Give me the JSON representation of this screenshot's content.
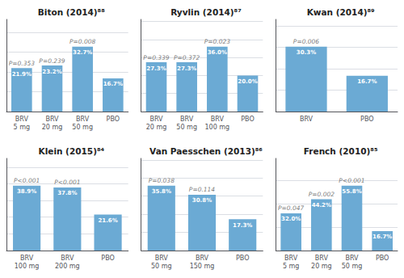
{
  "chart_data": [
    {
      "type": "bar",
      "title": "Biton (2014)⁸⁸",
      "categories": [
        "BRV\n5 mg",
        "BRV\n20 mg",
        "BRV\n50 mg",
        "PBO"
      ],
      "values": [
        21.9,
        23.2,
        32.7,
        16.7
      ],
      "value_labels": [
        "21.9%",
        "23.2%",
        "32.7%",
        "16.7%"
      ],
      "data_labels": true,
      "annotations": [
        "P=0.353",
        "P=0.239",
        "P=0.008",
        null
      ],
      "color": "#6baad4",
      "ylim": [
        0,
        46.434
      ],
      "yticks": [
        0,
        10,
        20,
        30,
        40
      ],
      "grid": true,
      "tick_labels": "x"
    },
    {
      "type": "bar",
      "title": "Ryvlin (2014)⁸⁷",
      "categories": [
        "BRV\n20 mg",
        "BRV\n50 mg",
        "BRV\n100 mg",
        "PBO"
      ],
      "values": [
        27.3,
        27.3,
        36.0,
        20.0
      ],
      "value_labels": [
        "27.3%",
        "27.3%",
        "36.0%",
        "20.0%"
      ],
      "data_labels": true,
      "annotations": [
        "P=0.339",
        "P=0.372",
        "P=0.023",
        null
      ],
      "color": "#6baad4",
      "ylim": [
        0,
        51.12
      ],
      "yticks": [
        0,
        10,
        20,
        30,
        40,
        50
      ],
      "grid": true,
      "tick_labels": "x"
    },
    {
      "type": "bar",
      "title": "Kwan (2014)⁸⁹",
      "categories": [
        "BRV",
        "PBO"
      ],
      "values": [
        30.3,
        16.7
      ],
      "value_labels": [
        "30.3%",
        "16.7%"
      ],
      "data_labels": true,
      "annotations": [
        "P=0.006",
        null
      ],
      "color": "#6baad4",
      "ylim": [
        0,
        43.026
      ],
      "yticks": [
        0,
        10,
        20,
        30,
        40
      ],
      "grid": true,
      "tick_labels": "x"
    },
    {
      "type": "bar",
      "title": "Klein (2015)⁸⁴",
      "categories": [
        "BRV\n100 mg",
        "BRV\n200 mg",
        "PBO"
      ],
      "values": [
        38.9,
        37.8,
        21.6
      ],
      "value_labels": [
        "38.9%",
        "37.8%",
        "21.6%"
      ],
      "data_labels": true,
      "annotations": [
        "P<0.001",
        "P<0.001",
        null
      ],
      "color": "#6baad4",
      "ylim": [
        0,
        55.238
      ],
      "yticks": [
        0,
        10,
        20,
        30,
        40,
        50
      ],
      "grid": true,
      "tick_labels": "x"
    },
    {
      "type": "bar",
      "title": "Van Paesschen (2013)⁸⁶",
      "categories": [
        "BRV\n50 mg",
        "BRV\n150 mg",
        "PBO"
      ],
      "values": [
        35.8,
        30.8,
        17.3
      ],
      "value_labels": [
        "35.8%",
        "30.8%",
        "17.3%"
      ],
      "data_labels": true,
      "annotations": [
        "P=0.038",
        "P=0.114",
        null
      ],
      "color": "#6baad4",
      "ylim": [
        0,
        50.836
      ],
      "yticks": [
        0,
        10,
        20,
        30,
        40,
        50
      ],
      "grid": true,
      "tick_labels": "x"
    },
    {
      "type": "bar",
      "title": "French (2010)⁸⁵",
      "categories": [
        "BRV\n5 mg",
        "BRV\n20 mg",
        "BRV\n50 mg",
        "PBO"
      ],
      "values": [
        32.0,
        44.2,
        55.8,
        16.7
      ],
      "value_labels": [
        "32.0%",
        "44.2%",
        "55.8%",
        "16.7%"
      ],
      "data_labels": true,
      "annotations": [
        "P=0.047",
        "P=0.002",
        "P<0.001",
        null
      ],
      "color": "#6baad4",
      "ylim": [
        0,
        79.236
      ],
      "yticks": [
        0,
        20,
        40,
        60
      ],
      "grid": true,
      "tick_labels": "x"
    }
  ]
}
